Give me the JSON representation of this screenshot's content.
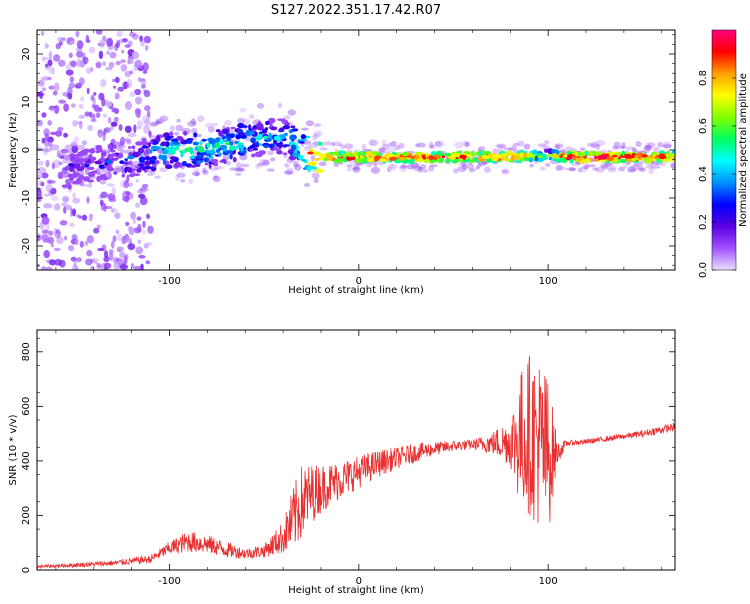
{
  "title": "S127.2022.351.17.42.R07",
  "chart_data": [
    {
      "type": "heatmap",
      "xlabel": "Height of straight line (km)",
      "ylabel": "Frequency (Hz)",
      "xlim": [
        -170,
        167
      ],
      "ylim": [
        -25,
        25
      ],
      "x_ticks": [
        -100,
        0,
        100
      ],
      "y_ticks": [
        20,
        10,
        0,
        -10,
        -20
      ],
      "grid": false,
      "colorbar": {
        "label": "Normalized spectral amplitude",
        "range": [
          0,
          1
        ],
        "ticks": [
          0.0,
          0.2,
          0.4,
          0.6,
          0.8
        ],
        "colormap": [
          "#e8e0ff",
          "#a050ff",
          "#5a00e0",
          "#0000ff",
          "#0090ff",
          "#00ffff",
          "#00ff60",
          "#80ff00",
          "#ffff00",
          "#ffa000",
          "#ff0000",
          "#ff0080"
        ]
      },
      "ridge": {
        "x": [
          -170,
          -160,
          -140,
          -120,
          -100,
          -80,
          -60,
          -40,
          -30,
          -25,
          -20,
          0,
          20,
          40,
          60,
          80,
          100,
          110,
          140,
          167
        ],
        "frequency": [
          -8,
          -5,
          -3,
          -2,
          0,
          0,
          2,
          3,
          0,
          -1,
          -1.5,
          -1.5,
          -1.5,
          -1.5,
          -1.5,
          -1.5,
          -1,
          -1.5,
          -1.5,
          -1.5
        ],
        "amplitude": [
          0.2,
          0.25,
          0.15,
          0.35,
          0.45,
          0.5,
          0.45,
          0.4,
          0.55,
          0.85,
          0.9,
          0.85,
          0.9,
          0.9,
          0.85,
          0.9,
          0.6,
          0.95,
          0.95,
          0.85
        ]
      },
      "tick_labels_x": [
        "-100",
        "0",
        "100"
      ],
      "tick_labels_y": [
        "20",
        "10",
        "0",
        "-10",
        "-20"
      ]
    },
    {
      "type": "line",
      "xlabel": "Height of straight line (km)",
      "ylabel": "SNR (10 * v/v)",
      "xlim": [
        -170,
        167
      ],
      "ylim": [
        0,
        880
      ],
      "x_ticks": [
        -100,
        0,
        100
      ],
      "y_ticks": [
        0,
        200,
        400,
        600,
        800
      ],
      "grid": false,
      "color": "#e83030",
      "series": [
        {
          "x": [
            -170,
            -150,
            -130,
            -110,
            -100,
            -90,
            -80,
            -70,
            -60,
            -50,
            -40,
            -35,
            -30,
            -25,
            -20,
            -10,
            0,
            10,
            20,
            30,
            40,
            50,
            60,
            70,
            80,
            85,
            90,
            95,
            100,
            105,
            110,
            120,
            130,
            140,
            150,
            160,
            167
          ],
          "values": [
            12,
            18,
            25,
            40,
            80,
            105,
            95,
            75,
            60,
            70,
            120,
            180,
            250,
            280,
            300,
            330,
            360,
            390,
            410,
            430,
            445,
            455,
            460,
            465,
            470,
            480,
            500,
            470,
            420,
            430,
            465,
            470,
            480,
            490,
            500,
            515,
            525
          ],
          "noise": [
            5,
            8,
            10,
            15,
            25,
            40,
            35,
            30,
            20,
            25,
            60,
            120,
            140,
            110,
            90,
            70,
            60,
            50,
            40,
            35,
            25,
            20,
            18,
            40,
            90,
            250,
            300,
            320,
            300,
            40,
            10,
            10,
            10,
            10,
            12,
            15,
            15
          ]
        }
      ],
      "tick_labels_x": [
        "-100",
        "0",
        "100"
      ],
      "tick_labels_y": [
        "0",
        "200",
        "400",
        "600",
        "800"
      ]
    }
  ]
}
